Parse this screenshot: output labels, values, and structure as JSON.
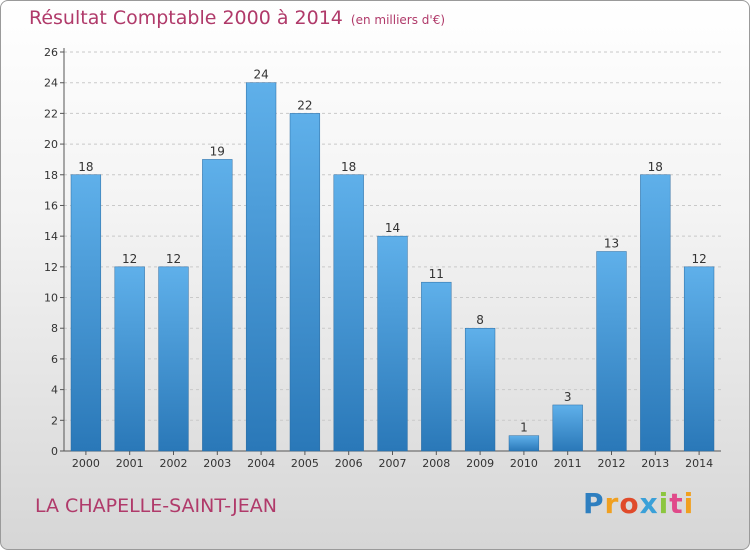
{
  "chart_data": {
    "type": "bar",
    "title": "Résultat Comptable 2000 à 2014",
    "unit_note": "(en milliers d'€)",
    "categories": [
      "2000",
      "2001",
      "2002",
      "2003",
      "2004",
      "2005",
      "2006",
      "2007",
      "2008",
      "2009",
      "2010",
      "2011",
      "2012",
      "2013",
      "2014"
    ],
    "values": [
      18,
      12,
      12,
      19,
      24,
      22,
      18,
      14,
      11,
      8,
      1,
      3,
      13,
      18,
      12
    ],
    "ylim": [
      0,
      26
    ],
    "yticks": [
      0,
      2,
      4,
      6,
      8,
      10,
      12,
      14,
      16,
      18,
      20,
      22,
      24,
      26
    ],
    "grid": true,
    "xlabel": "",
    "ylabel": ""
  },
  "location": "LA CHAPELLE-SAINT-JEAN",
  "brand": {
    "name": "Proxiti",
    "letters": [
      "P",
      "r",
      "o",
      "x",
      "i",
      "t",
      "i"
    ],
    "letter_colors": [
      "#2e7fc0",
      "#f0a020",
      "#e04a2a",
      "#3aa0d8",
      "#8cc63f",
      "#e04a8a",
      "#f0a020"
    ]
  },
  "colors": {
    "bar_top": "#5fb0ea",
    "bar_bottom": "#2a78b8",
    "title": "#b03a6a"
  }
}
